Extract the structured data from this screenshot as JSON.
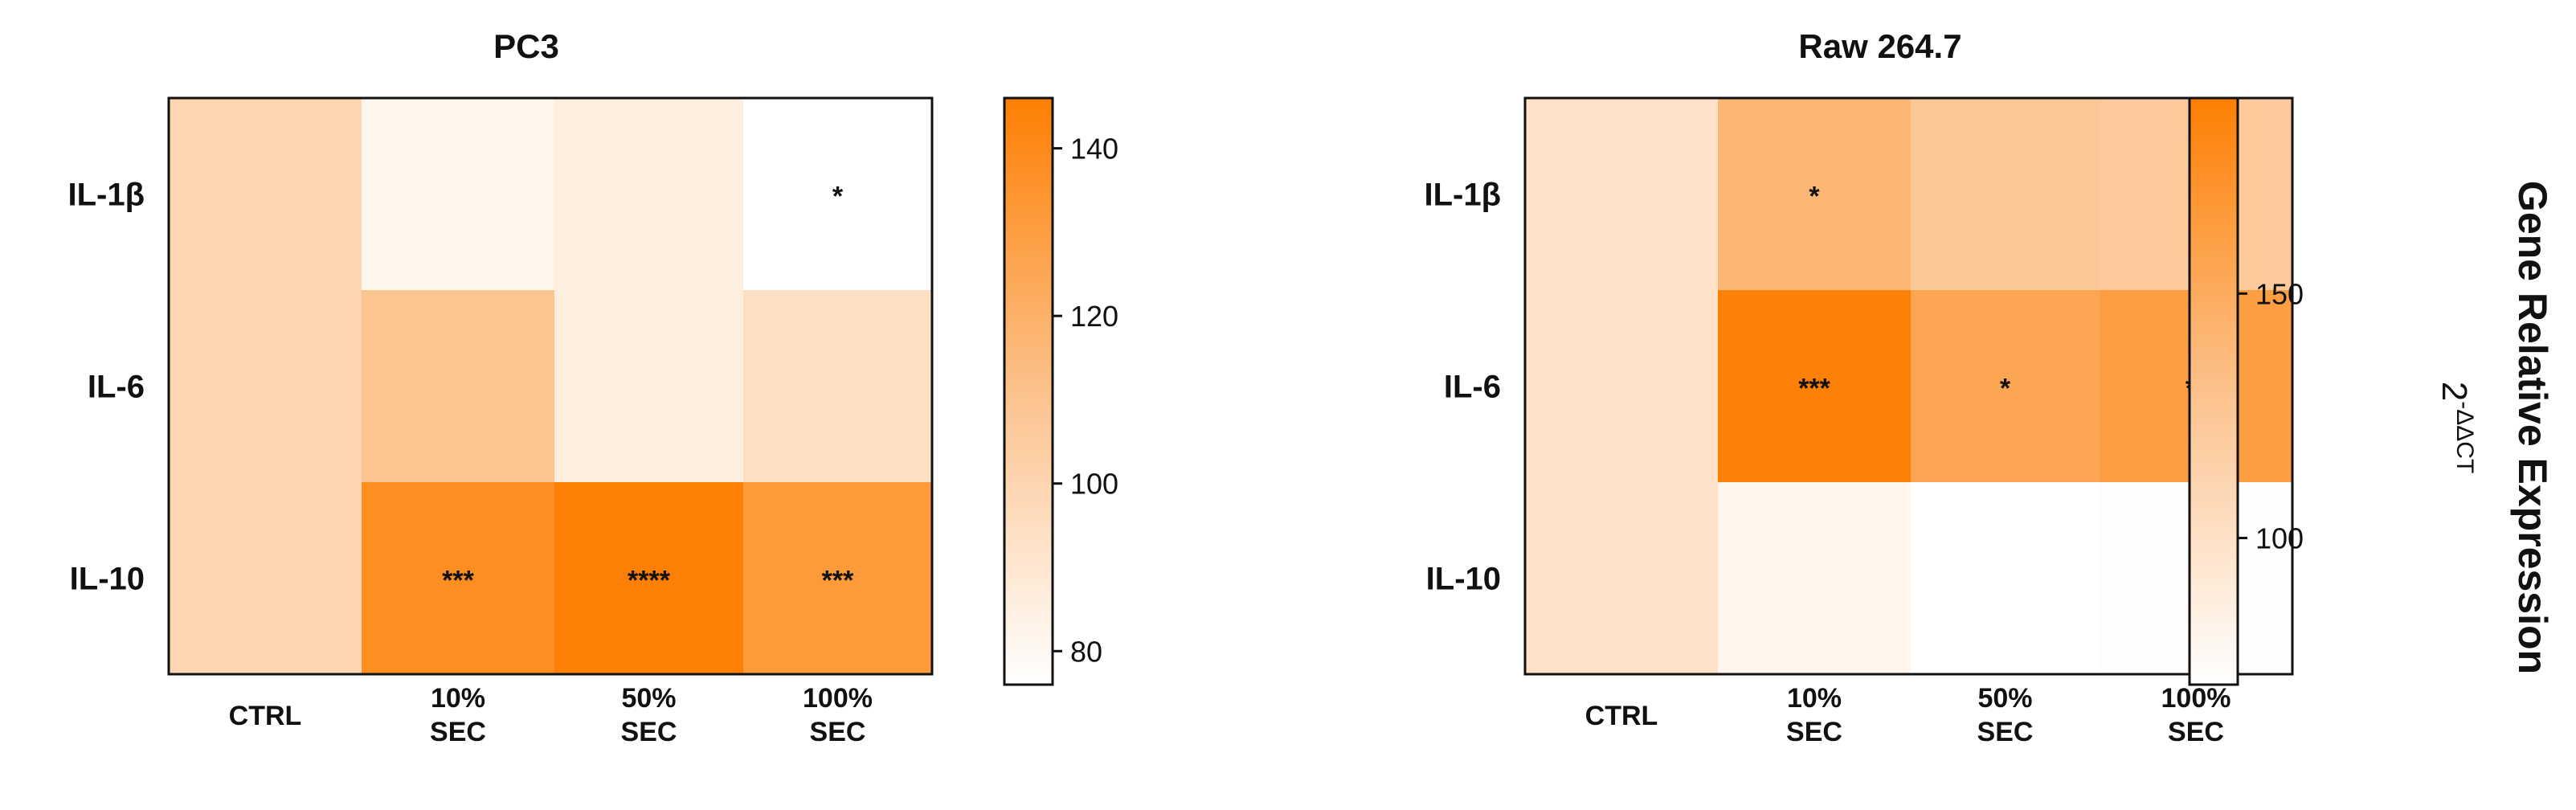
{
  "colorbar_title": "Gene Relative Expression",
  "colorbar_formula": {
    "base": "2",
    "exponent": "-ΔΔCT"
  },
  "colors": {
    "low": "#ffffff",
    "mid": "#fcc28c",
    "high": "#fd7f03"
  },
  "chart_data": [
    {
      "type": "heatmap",
      "title": "PC3",
      "rows": [
        "IL-1β",
        "IL-6",
        "IL-10"
      ],
      "columns": [
        [
          "CTRL"
        ],
        [
          "10%",
          "SEC"
        ],
        [
          "50%",
          "SEC"
        ],
        [
          "100%",
          "SEC"
        ]
      ],
      "values": [
        [
          100,
          82,
          86,
          76
        ],
        [
          100,
          110,
          86,
          94
        ],
        [
          100,
          138,
          146,
          132
        ]
      ],
      "significance": [
        [
          "",
          "",
          "",
          "*"
        ],
        [
          "",
          "",
          "",
          ""
        ],
        [
          "",
          "***",
          "****",
          "***"
        ]
      ],
      "color_range": [
        76,
        146
      ],
      "colorbar_ticks": [
        80,
        100,
        120,
        140
      ]
    },
    {
      "type": "heatmap",
      "title": "Raw 264.7",
      "rows": [
        "IL-1β",
        "IL-6",
        "IL-10"
      ],
      "columns": [
        [
          "CTRL"
        ],
        [
          "10%",
          "SEC"
        ],
        [
          "50%",
          "SEC"
        ],
        [
          "100%",
          "SEC"
        ]
      ],
      "values": [
        [
          100,
          140,
          125,
          122
        ],
        [
          100,
          188,
          155,
          162
        ],
        [
          100,
          80,
          70,
          72
        ]
      ],
      "significance": [
        [
          "",
          "*",
          "",
          ""
        ],
        [
          "",
          "***",
          "*",
          "**"
        ],
        [
          "",
          "",
          "",
          ""
        ]
      ],
      "color_range": [
        70,
        190
      ],
      "colorbar_ticks": [
        100,
        150
      ]
    }
  ]
}
